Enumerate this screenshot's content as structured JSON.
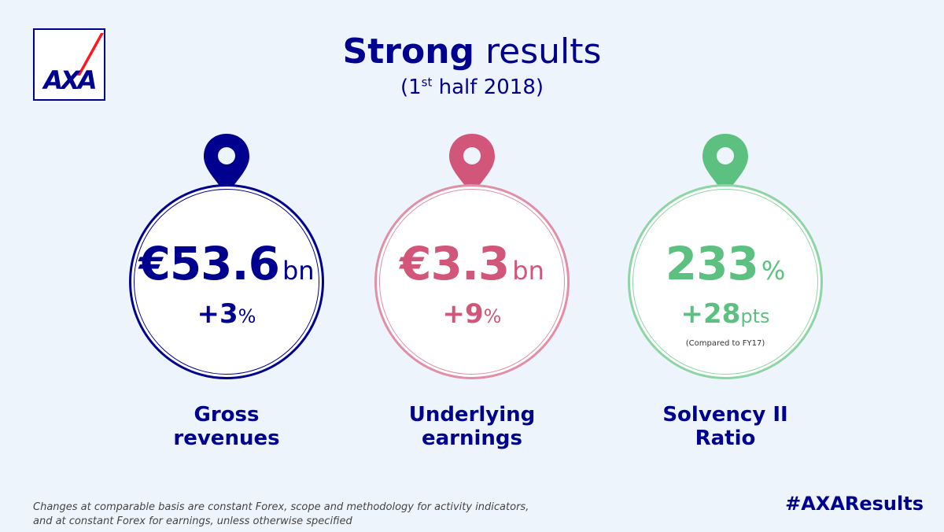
{
  "logo": {
    "text": "AXA"
  },
  "header": {
    "title_strong": "Strong",
    "title_rest": "results",
    "subtitle_pre": "(1",
    "subtitle_sup": "st",
    "subtitle_post": " half 2018)"
  },
  "metrics": [
    {
      "value": "€53.6",
      "value_unit": "bn",
      "change": "+3",
      "change_unit": "%",
      "note": "",
      "label_line1": "Gross",
      "label_line2": "revenues",
      "color": "#00008f"
    },
    {
      "value": "€3.3",
      "value_unit": "bn",
      "change": "+9",
      "change_unit": "%",
      "note": "",
      "label_line1": "Underlying",
      "label_line2": "earnings",
      "color": "#d2557a"
    },
    {
      "value": "233",
      "value_unit": "%",
      "change": "+28",
      "change_unit": "pts",
      "note": "(Compared to FY17)",
      "label_line1": "Solvency II",
      "label_line2": "Ratio",
      "color": "#5cc080"
    }
  ],
  "footer": {
    "note_line1": "Changes at comparable basis are constant Forex, scope and methodology for activity indicators,",
    "note_line2": "and at constant Forex for earnings, unless otherwise specified",
    "hashtag": "#AXAResults"
  }
}
